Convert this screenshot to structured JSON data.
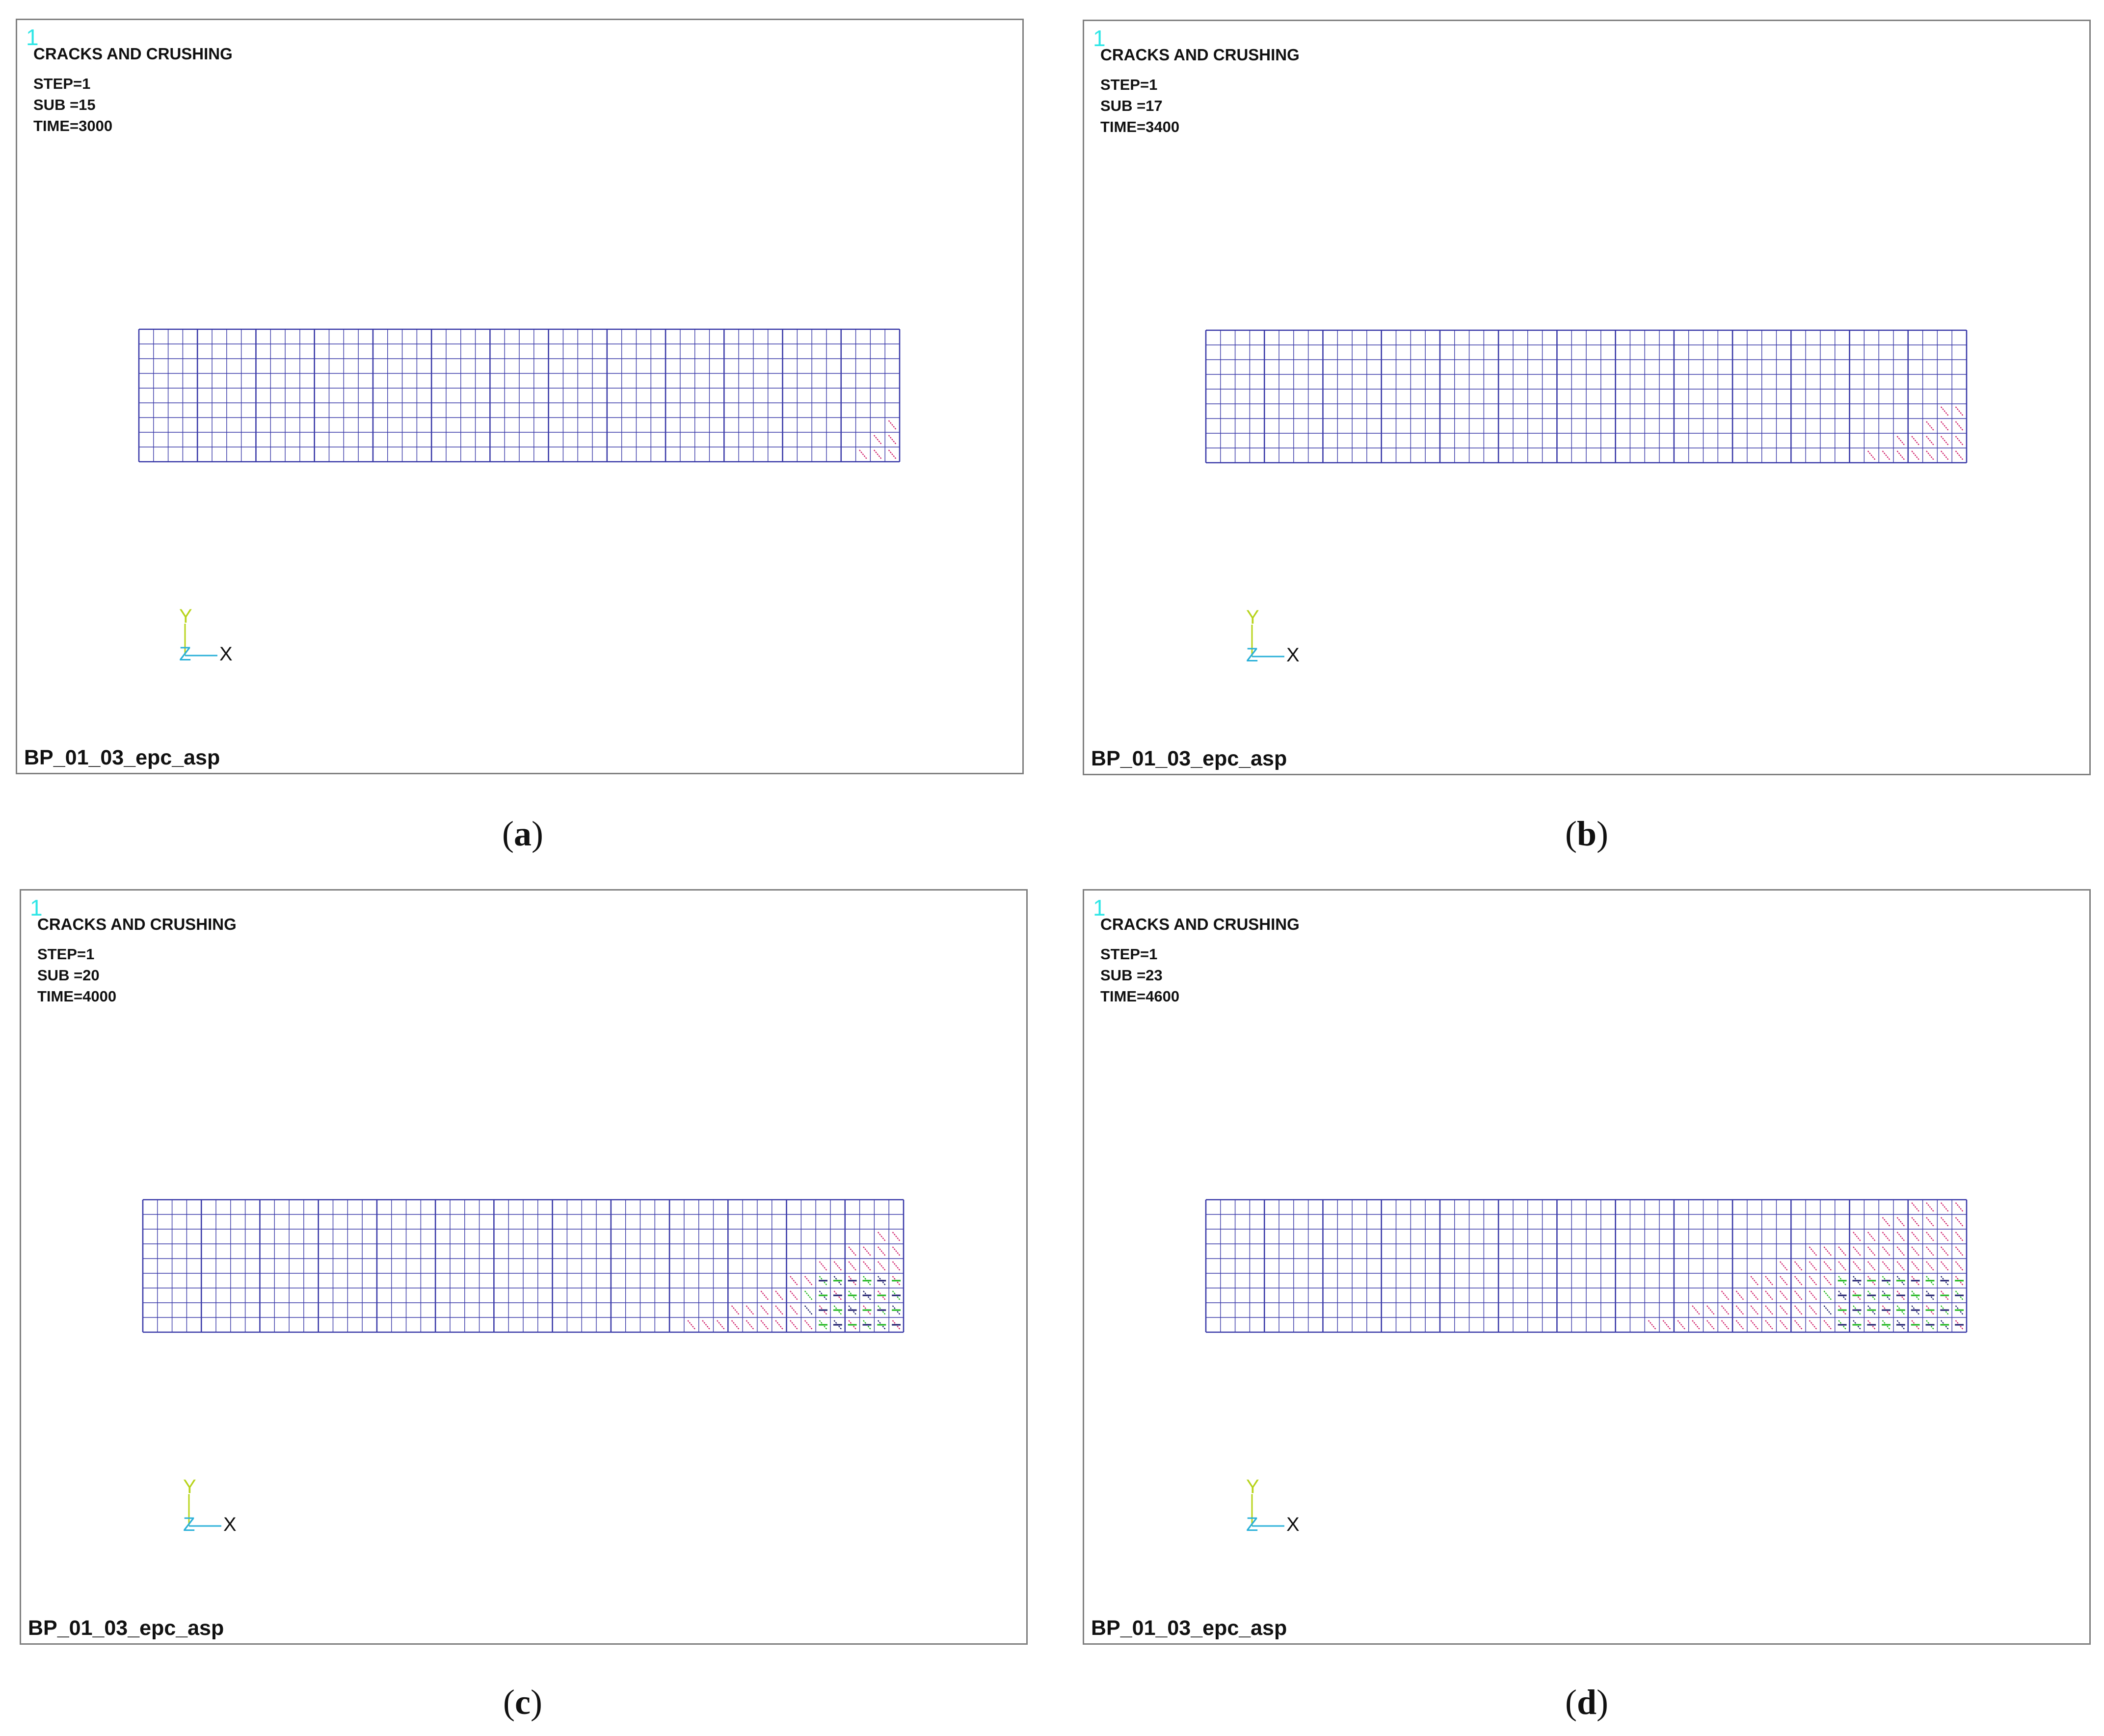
{
  "panels": [
    {
      "id": "a",
      "index_label": "1",
      "title": "CRACKS AND CRUSHING",
      "step": "STEP=1",
      "sub": "SUB =15",
      "time": "TIME=3000",
      "footer": "BP_01_03_epc_asp",
      "caption_open": "(",
      "caption_letter": "a",
      "caption_close": ")",
      "axes": {
        "y": "Y",
        "z": "Z",
        "x": "X"
      },
      "crack_extent": 0.05
    },
    {
      "id": "b",
      "index_label": "1",
      "title": "CRACKS AND CRUSHING",
      "step": "STEP=1",
      "sub": "SUB =17",
      "time": "TIME=3400",
      "footer": "BP_01_03_epc_asp",
      "caption_open": "(",
      "caption_letter": "b",
      "caption_close": ")",
      "axes": {
        "y": "Y",
        "z": "Z",
        "x": "X"
      },
      "crack_extent": 0.12
    },
    {
      "id": "c",
      "index_label": "1",
      "title": "CRACKS AND CRUSHING",
      "step": "STEP=1",
      "sub": "SUB =20",
      "time": "TIME=4000",
      "footer": "BP_01_03_epc_asp",
      "caption_open": "(",
      "caption_letter": "c",
      "caption_close": ")",
      "axes": {
        "y": "Y",
        "z": "Z",
        "x": "X"
      },
      "crack_extent": 0.28
    },
    {
      "id": "d",
      "index_label": "1",
      "title": "CRACKS AND CRUSHING",
      "step": "STEP=1",
      "sub": "SUB =23",
      "time": "TIME=4600",
      "footer": "BP_01_03_epc_asp",
      "caption_open": "(",
      "caption_letter": "d",
      "caption_close": ")",
      "axes": {
        "y": "Y",
        "z": "Z",
        "x": "X"
      },
      "crack_extent": 0.42
    }
  ],
  "colors": {
    "mesh_line": "#3a3aa8",
    "crack_magenta": "#d0206a",
    "crack_green": "#18b418",
    "crack_dark": "#1a1a6a",
    "axis_y": "#b8d41c",
    "axis_z": "#2ab0d8",
    "axis_x": "#111111",
    "index": "#2ee6e6"
  }
}
